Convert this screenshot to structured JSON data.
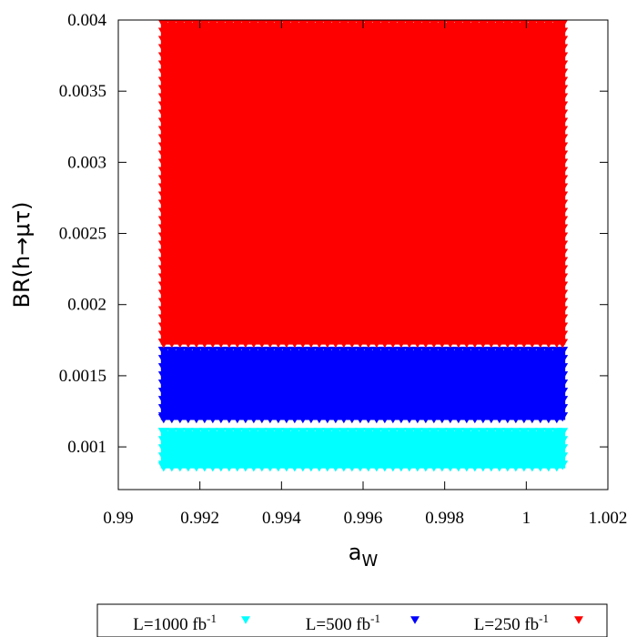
{
  "chart_data": {
    "type": "scatter",
    "title": "",
    "xlabel": {
      "main": "a",
      "sub": "W"
    },
    "ylabel": "BR(h→μτ)",
    "xlim": [
      0.99,
      1.002
    ],
    "ylim": [
      0.0007,
      0.004
    ],
    "xticks": [
      {
        "v": 0.99,
        "label": "0.99"
      },
      {
        "v": 0.992,
        "label": "0.992"
      },
      {
        "v": 0.994,
        "label": "0.994"
      },
      {
        "v": 0.996,
        "label": "0.996"
      },
      {
        "v": 0.998,
        "label": "0.998"
      },
      {
        "v": 1.0,
        "label": "1"
      },
      {
        "v": 1.002,
        "label": "1.002"
      }
    ],
    "yticks": [
      {
        "v": 0.001,
        "label": "0.001"
      },
      {
        "v": 0.0015,
        "label": "0.0015"
      },
      {
        "v": 0.002,
        "label": "0.002"
      },
      {
        "v": 0.0025,
        "label": "0.0025"
      },
      {
        "v": 0.003,
        "label": "0.003"
      },
      {
        "v": 0.0035,
        "label": "0.0035"
      },
      {
        "v": 0.004,
        "label": "0.004"
      }
    ],
    "grid": false,
    "legend_position": "bottom",
    "marker": "inverted-triangle",
    "series": [
      {
        "name": "L=1000 fb",
        "sup": "-1",
        "color": "#00ffff",
        "x_range": [
          0.991,
          1.001
        ],
        "y_range": [
          0.00083,
          0.00113
        ]
      },
      {
        "name": "L=500 fb",
        "sup": "-1",
        "color": "#0000ff",
        "x_range": [
          0.991,
          1.001
        ],
        "y_range": [
          0.00117,
          0.0017
        ]
      },
      {
        "name": "L=250 fb",
        "sup": "-1",
        "color": "#ff0000",
        "x_range": [
          0.991,
          1.001
        ],
        "y_range": [
          0.0017,
          0.004
        ]
      }
    ]
  }
}
